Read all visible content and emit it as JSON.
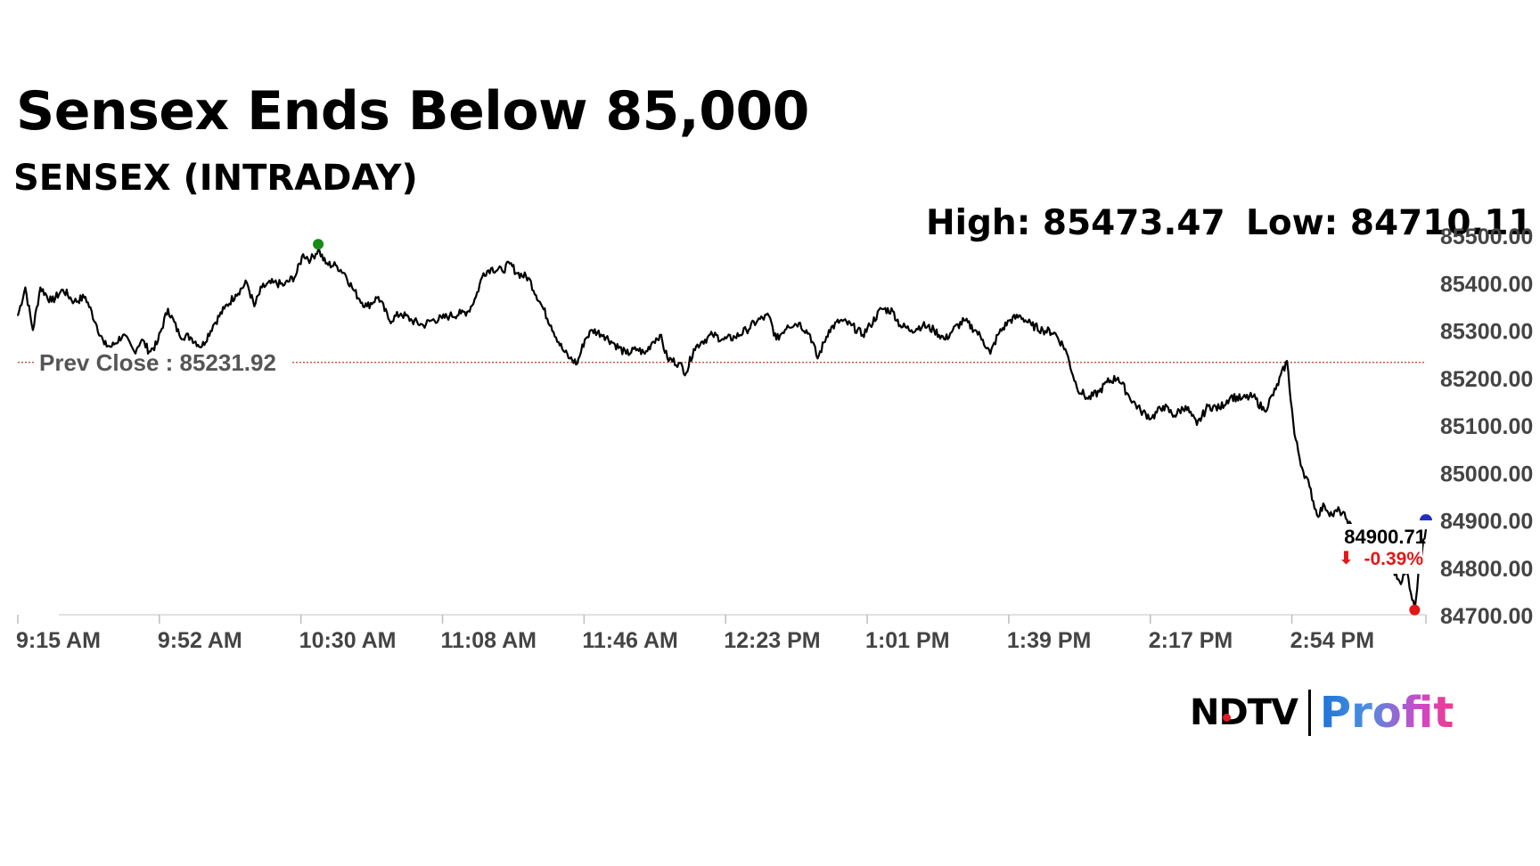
{
  "header": {
    "title": "Sensex Ends Below 85,000",
    "subtitle": "SENSEX (INTRADAY)",
    "high_text": "High: 85473.47",
    "low_text": "Low: 84710.11"
  },
  "brand": {
    "ndtv": "NDTV",
    "profit": "Profit"
  },
  "colors": {
    "line": "#000000",
    "prev_close": "#c0392b",
    "high_marker": "#1a8a1a",
    "low_marker": "#e01818",
    "current_marker": "#1f2fbf",
    "down": "#e01818"
  },
  "chart_data": {
    "type": "line",
    "title": "SENSEX (INTRADAY)",
    "x_ticks": [
      "9:15 AM",
      "9:52 AM",
      "10:30 AM",
      "11:08 AM",
      "11:46 AM",
      "12:23 PM",
      "1:01 PM",
      "1:39 PM",
      "2:17 PM",
      "2:54 PM"
    ],
    "y_ticks": [
      "85500.00",
      "85400.00",
      "85300.00",
      "85200.00",
      "85100.00",
      "85000.00",
      "84900.00",
      "84800.00",
      "84700.00"
    ],
    "ylim": [
      84700,
      85500
    ],
    "xlim_minutes_after_open": [
      0,
      375
    ],
    "prev_close": 85231.92,
    "prev_close_label": "Prev Close : 85231.92",
    "high": 85473.47,
    "low": 84710.11,
    "last_value_label": "84900.71",
    "change_label": "-0.39%",
    "change_arrow": "⬇",
    "series": [
      {
        "points": [
          [
            "9:15",
            85330
          ],
          [
            "9:17",
            85390
          ],
          [
            "9:19",
            85300
          ],
          [
            "9:21",
            85390
          ],
          [
            "9:24",
            85360
          ],
          [
            "9:27",
            85385
          ],
          [
            "9:30",
            85360
          ],
          [
            "9:33",
            85370
          ],
          [
            "9:36",
            85310
          ],
          [
            "9:38",
            85270
          ],
          [
            "9:40",
            85265
          ],
          [
            "9:43",
            85290
          ],
          [
            "9:46",
            85255
          ],
          [
            "9:48",
            85280
          ],
          [
            "9:50",
            85255
          ],
          [
            "9:52",
            85270
          ],
          [
            "9:55",
            85345
          ],
          [
            "9:58",
            85290
          ],
          [
            "10:01",
            85285
          ],
          [
            "10:04",
            85265
          ],
          [
            "10:07",
            85310
          ],
          [
            "10:10",
            85345
          ],
          [
            "10:13",
            85375
          ],
          [
            "10:16",
            85400
          ],
          [
            "10:18",
            85350
          ],
          [
            "10:20",
            85390
          ],
          [
            "10:23",
            85400
          ],
          [
            "10:26",
            85395
          ],
          [
            "10:29",
            85415
          ],
          [
            "10:31",
            85460
          ],
          [
            "10:33",
            85448
          ],
          [
            "10:35",
            85470
          ],
          [
            "10:37",
            85440
          ],
          [
            "10:40",
            85435
          ],
          [
            "10:42",
            85420
          ],
          [
            "10:44",
            85390
          ],
          [
            "10:46",
            85365
          ],
          [
            "10:48",
            85350
          ],
          [
            "10:51",
            85370
          ],
          [
            "10:54",
            85320
          ],
          [
            "10:57",
            85335
          ],
          [
            "11:00",
            85320
          ],
          [
            "11:03",
            85310
          ],
          [
            "11:05",
            85320
          ],
          [
            "11:08",
            85325
          ],
          [
            "11:10",
            85330
          ],
          [
            "11:13",
            85335
          ],
          [
            "11:15",
            85340
          ],
          [
            "11:17",
            85370
          ],
          [
            "11:19",
            85420
          ],
          [
            "11:21",
            85430
          ],
          [
            "11:24",
            85425
          ],
          [
            "11:26",
            85440
          ],
          [
            "11:28",
            85420
          ],
          [
            "11:31",
            85410
          ],
          [
            "11:34",
            85360
          ],
          [
            "11:37",
            85310
          ],
          [
            "11:40",
            85260
          ],
          [
            "11:42",
            85240
          ],
          [
            "11:44",
            85230
          ],
          [
            "11:46",
            85280
          ],
          [
            "11:48",
            85300
          ],
          [
            "11:51",
            85290
          ],
          [
            "11:54",
            85270
          ],
          [
            "11:57",
            85250
          ],
          [
            "12:00",
            85260
          ],
          [
            "12:02",
            85250
          ],
          [
            "12:04",
            85275
          ],
          [
            "12:06",
            85290
          ],
          [
            "12:08",
            85240
          ],
          [
            "12:11",
            85230
          ],
          [
            "12:13",
            85210
          ],
          [
            "12:15",
            85260
          ],
          [
            "12:17",
            85275
          ],
          [
            "12:20",
            85290
          ],
          [
            "12:23",
            85280
          ],
          [
            "12:26",
            85285
          ],
          [
            "12:29",
            85300
          ],
          [
            "12:32",
            85320
          ],
          [
            "12:35",
            85330
          ],
          [
            "12:37",
            85280
          ],
          [
            "12:40",
            85310
          ],
          [
            "12:43",
            85315
          ],
          [
            "12:46",
            85290
          ],
          [
            "12:48",
            85240
          ],
          [
            "12:51",
            85300
          ],
          [
            "12:54",
            85320
          ],
          [
            "12:57",
            85310
          ],
          [
            "13:00",
            85290
          ],
          [
            "13:02",
            85310
          ],
          [
            "13:05",
            85345
          ],
          [
            "13:08",
            85340
          ],
          [
            "13:10",
            85310
          ],
          [
            "13:13",
            85300
          ],
          [
            "13:16",
            85310
          ],
          [
            "13:19",
            85300
          ],
          [
            "13:22",
            85280
          ],
          [
            "13:24",
            85300
          ],
          [
            "13:27",
            85320
          ],
          [
            "13:30",
            85300
          ],
          [
            "13:32",
            85280
          ],
          [
            "13:34",
            85250
          ],
          [
            "13:36",
            85290
          ],
          [
            "13:39",
            85320
          ],
          [
            "13:42",
            85330
          ],
          [
            "13:45",
            85310
          ],
          [
            "13:48",
            85300
          ],
          [
            "13:51",
            85295
          ],
          [
            "13:54",
            85260
          ],
          [
            "13:57",
            85180
          ],
          [
            "14:00",
            85155
          ],
          [
            "14:03",
            85170
          ],
          [
            "14:05",
            85190
          ],
          [
            "14:08",
            85200
          ],
          [
            "14:11",
            85160
          ],
          [
            "14:14",
            85130
          ],
          [
            "14:17",
            85115
          ],
          [
            "14:20",
            85140
          ],
          [
            "14:23",
            85120
          ],
          [
            "14:26",
            85140
          ],
          [
            "14:29",
            85100
          ],
          [
            "14:32",
            85140
          ],
          [
            "14:35",
            85135
          ],
          [
            "14:38",
            85160
          ],
          [
            "14:41",
            85155
          ],
          [
            "14:44",
            85160
          ],
          [
            "14:47",
            85130
          ],
          [
            "14:50",
            85175
          ],
          [
            "14:53",
            85235
          ],
          [
            "14:55",
            85080
          ],
          [
            "14:57",
            85010
          ],
          [
            "14:59",
            84970
          ],
          [
            "15:01",
            84910
          ],
          [
            "15:03",
            84930
          ],
          [
            "15:05",
            84910
          ],
          [
            "15:07",
            84920
          ],
          [
            "15:09",
            84900
          ],
          [
            "15:11",
            84870
          ],
          [
            "15:13",
            84860
          ],
          [
            "15:15",
            84830
          ],
          [
            "15:17",
            84810
          ],
          [
            "15:19",
            84790
          ],
          [
            "15:21",
            84800
          ],
          [
            "15:23",
            84770
          ],
          [
            "15:25",
            84790
          ],
          [
            "15:27",
            84710
          ],
          [
            "15:28",
            84790
          ],
          [
            "15:30",
            84880
          ]
        ]
      }
    ]
  }
}
